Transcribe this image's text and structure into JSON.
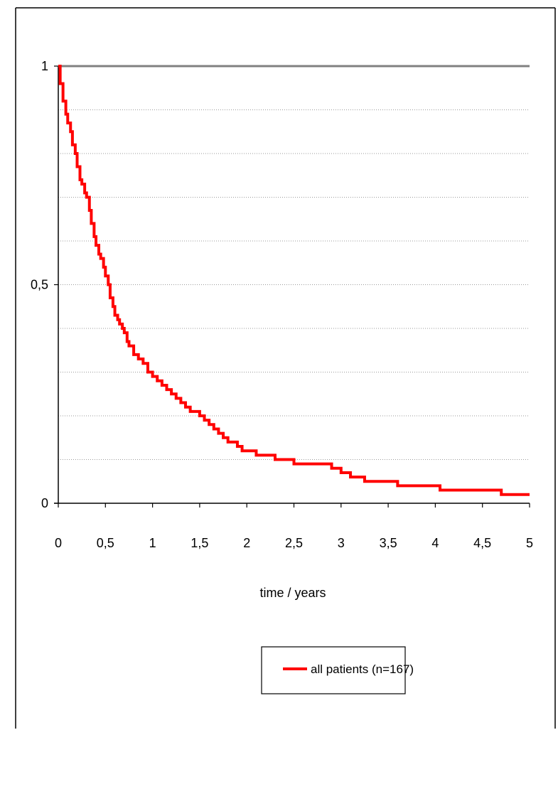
{
  "chart_data": {
    "type": "line",
    "title": "",
    "xlabel": "time / years",
    "ylabel": "",
    "xlim": [
      0,
      5
    ],
    "ylim": [
      0,
      1
    ],
    "x_ticks": [
      0,
      0.5,
      1,
      1.5,
      2,
      2.5,
      3,
      3.5,
      4,
      4.5,
      5
    ],
    "x_tick_labels": [
      "0",
      "0,5",
      "1",
      "1,5",
      "2",
      "2,5",
      "3",
      "3,5",
      "4",
      "4,5",
      "5"
    ],
    "y_ticks": [
      0,
      0.5,
      1
    ],
    "y_tick_labels": [
      "0",
      "0,5",
      "1"
    ],
    "y_gridlines": [
      0.1,
      0.2,
      0.3,
      0.4,
      0.5,
      0.6,
      0.7,
      0.8,
      0.9,
      1.0
    ],
    "grid": "horizontal dotted",
    "legend_position": "bottom-center",
    "series": [
      {
        "name": "all patients (n=167)",
        "color": "#ff0000",
        "step": true,
        "x": [
          0,
          0.02,
          0.05,
          0.08,
          0.1,
          0.13,
          0.15,
          0.18,
          0.2,
          0.23,
          0.25,
          0.28,
          0.3,
          0.33,
          0.35,
          0.38,
          0.4,
          0.43,
          0.45,
          0.48,
          0.5,
          0.53,
          0.55,
          0.58,
          0.6,
          0.63,
          0.65,
          0.68,
          0.7,
          0.73,
          0.75,
          0.8,
          0.85,
          0.9,
          0.95,
          1.0,
          1.05,
          1.1,
          1.15,
          1.2,
          1.25,
          1.3,
          1.35,
          1.4,
          1.45,
          1.5,
          1.55,
          1.6,
          1.65,
          1.7,
          1.75,
          1.8,
          1.85,
          1.9,
          1.95,
          2.0,
          2.1,
          2.2,
          2.3,
          2.4,
          2.5,
          2.6,
          2.9,
          3.0,
          3.1,
          3.25,
          3.6,
          3.8,
          4.05,
          4.3,
          4.7,
          5.0
        ],
        "values": [
          1.0,
          0.96,
          0.92,
          0.89,
          0.87,
          0.85,
          0.82,
          0.8,
          0.77,
          0.74,
          0.73,
          0.71,
          0.7,
          0.67,
          0.64,
          0.61,
          0.59,
          0.57,
          0.56,
          0.54,
          0.52,
          0.5,
          0.47,
          0.45,
          0.43,
          0.42,
          0.41,
          0.4,
          0.39,
          0.37,
          0.36,
          0.34,
          0.33,
          0.32,
          0.3,
          0.29,
          0.28,
          0.27,
          0.26,
          0.25,
          0.24,
          0.23,
          0.22,
          0.21,
          0.21,
          0.2,
          0.19,
          0.18,
          0.17,
          0.16,
          0.15,
          0.14,
          0.14,
          0.13,
          0.12,
          0.12,
          0.11,
          0.11,
          0.1,
          0.1,
          0.09,
          0.09,
          0.08,
          0.07,
          0.06,
          0.05,
          0.04,
          0.04,
          0.03,
          0.03,
          0.02,
          0.02
        ]
      }
    ]
  }
}
